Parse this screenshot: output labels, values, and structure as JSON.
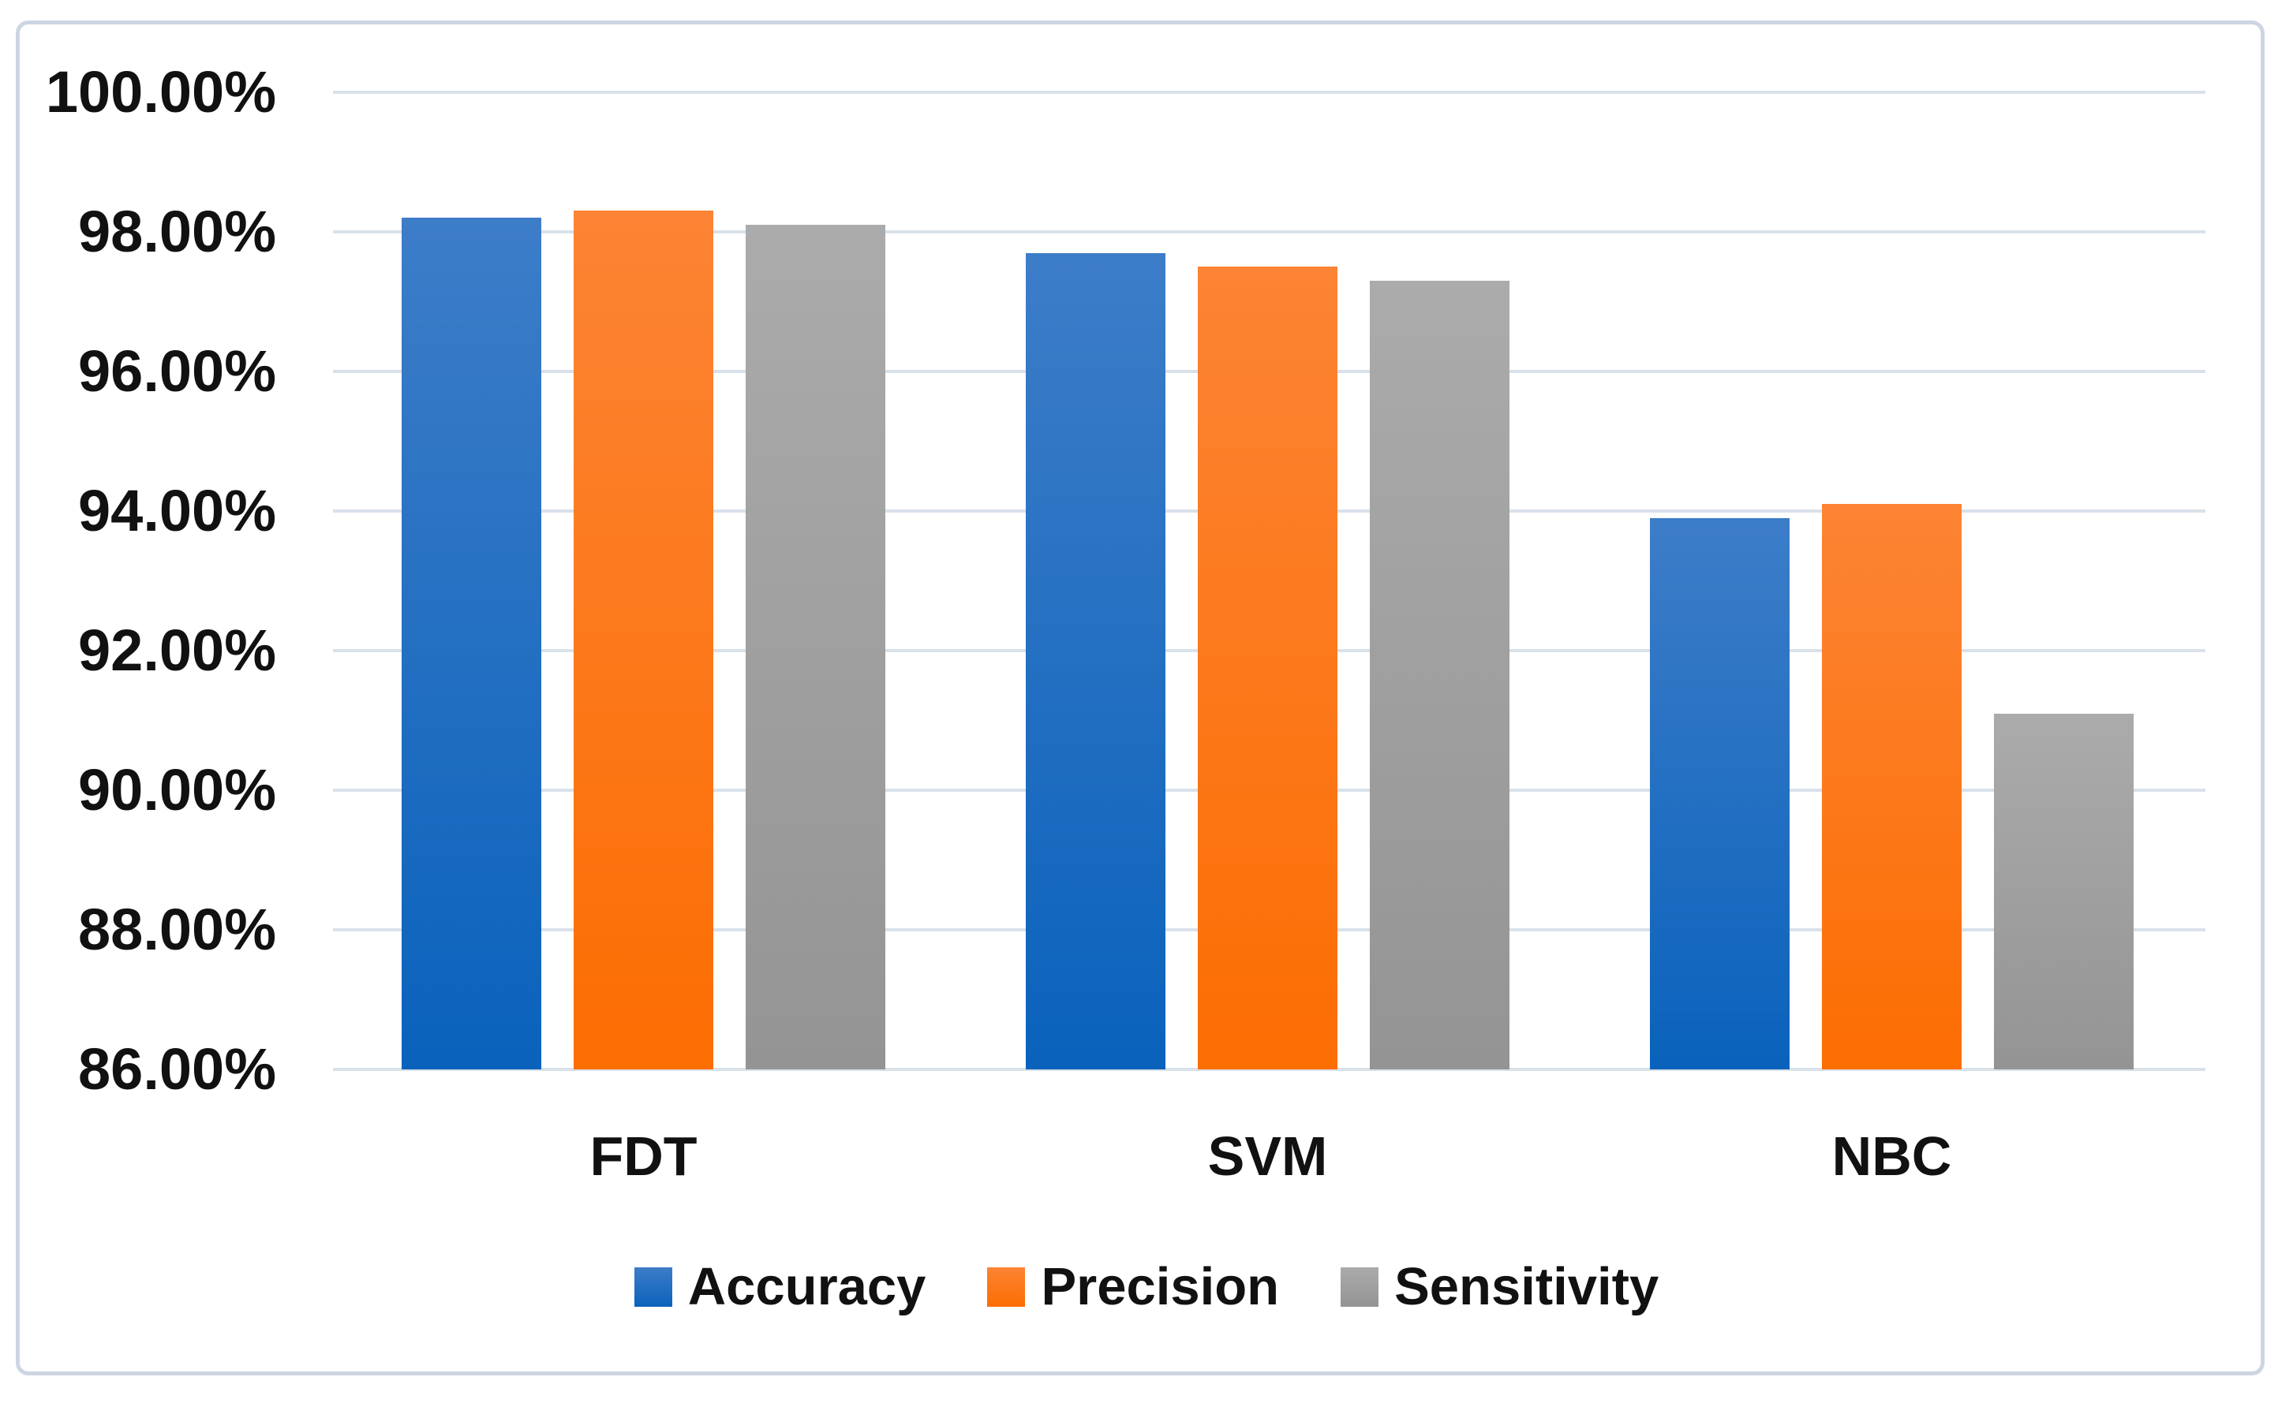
{
  "chart_data": {
    "type": "bar",
    "title": "",
    "xlabel": "",
    "ylabel": "",
    "categories": [
      "FDT",
      "SVM",
      "NBC"
    ],
    "series": [
      {
        "name": "Accuracy",
        "values": [
          98.2,
          97.7,
          93.9
        ],
        "color": "#2e74c4",
        "gradient_top": "#3d7dc8",
        "gradient_bottom": "#0a62bc"
      },
      {
        "name": "Precision",
        "values": [
          98.3,
          97.5,
          94.1
        ],
        "color": "#fb7a22",
        "gradient_top": "#fc8434",
        "gradient_bottom": "#fc6d02"
      },
      {
        "name": "Sensitivity",
        "values": [
          98.1,
          97.3,
          91.1
        ],
        "color": "#a2a2a2",
        "gradient_top": "#ababab",
        "gradient_bottom": "#949494"
      }
    ],
    "ylim": [
      86,
      100
    ],
    "ytick_step": 2,
    "yticks": [
      {
        "value": 100,
        "label": "100.00%"
      },
      {
        "value": 98,
        "label": "98.00%"
      },
      {
        "value": 96,
        "label": "96.00%"
      },
      {
        "value": 94,
        "label": "94.00%"
      },
      {
        "value": 92,
        "label": "92.00%"
      },
      {
        "value": 90,
        "label": "90.00%"
      },
      {
        "value": 88,
        "label": "88.00%"
      },
      {
        "value": 86,
        "label": "86.00%"
      }
    ],
    "grid": true,
    "legend_position": "bottom"
  },
  "colors": {
    "background": "#ffffff",
    "frame_border": "#ccd6e2",
    "gridline": "#d9e1ea",
    "text": "#111111"
  }
}
